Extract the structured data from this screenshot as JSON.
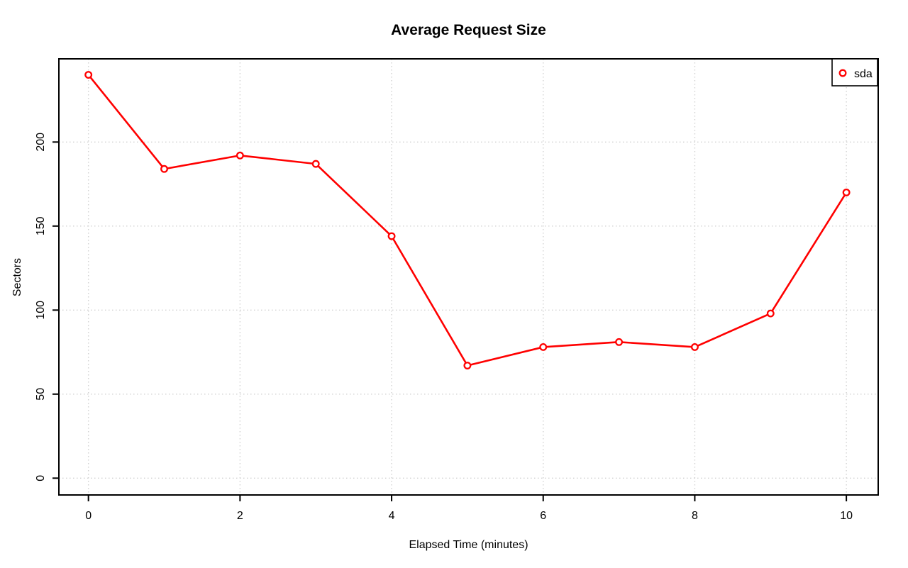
{
  "chart_data": {
    "type": "line",
    "title": "Average Request Size",
    "xlabel": "Elapsed Time (minutes)",
    "ylabel": "Sectors",
    "x": [
      0,
      1,
      2,
      3,
      4,
      5,
      6,
      7,
      8,
      9,
      10
    ],
    "series": [
      {
        "name": "sda",
        "color": "#ff0000",
        "marker": "open-circle",
        "values": [
          240,
          184,
          192,
          187,
          144,
          67,
          78,
          81,
          78,
          98,
          170
        ]
      }
    ],
    "x_ticks": [
      0,
      2,
      4,
      6,
      8,
      10
    ],
    "y_ticks": [
      0,
      50,
      100,
      150,
      200
    ],
    "xlim": [
      -0.39,
      10.42
    ],
    "ylim": [
      -10,
      249.5
    ],
    "grid": "dotted",
    "legend_position": "top-right",
    "colors": {
      "axis": "#000000",
      "grid": "#d2d2d2",
      "background": "#ffffff",
      "text": "#000000"
    }
  }
}
